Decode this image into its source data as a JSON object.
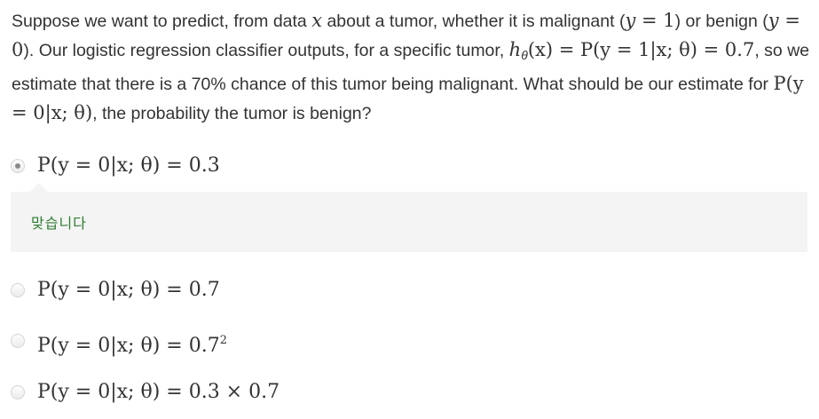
{
  "question": {
    "part1": "Suppose we want to predict, from data ",
    "x": "x",
    "part2": " about a tumor, whether it is malignant (",
    "y1": "y",
    "eq1": " = 1",
    "part3": ") or benign (",
    "y0": "y",
    "eq0": " = 0",
    "part4": "). Our logistic regression classifier outputs, for a specific tumor, ",
    "h": "h",
    "theta_sub": "θ",
    "hx": "(x) = P(y = 1|x; θ) = 0.7",
    "part5": ", so we estimate that there is a 70% chance of this tumor being malignant. What should be our estimate for ",
    "target": "P(y = 0|x; θ)",
    "part6": ", the probability the tumor is benign?"
  },
  "options": [
    {
      "label": "P(y = 0|x; θ) = 0.3",
      "selected": true
    },
    {
      "label": "P(y = 0|x; θ) = 0.7",
      "selected": false
    },
    {
      "label_base": "P(y = 0|x; θ) = 0.7",
      "label_sup": "2",
      "selected": false
    },
    {
      "label": "P(y = 0|x; θ) = 0.3 × 0.7",
      "selected": false
    }
  ],
  "feedback": {
    "text": "맞습니다",
    "color": "#2e7d32"
  }
}
